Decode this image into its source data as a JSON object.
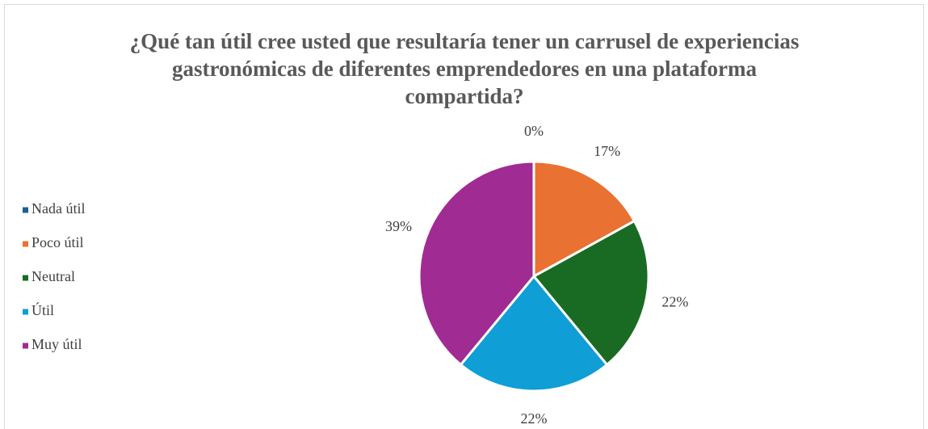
{
  "chart_data": {
    "type": "pie",
    "title": "¿Qué tan útil cree usted que resultaría tener un carrusel de experiencias gastronómicas de diferentes emprendedores en una plataforma compartida?",
    "categories": [
      "Nada útil",
      "Poco útil",
      "Neutral",
      "Útil",
      "Muy útil"
    ],
    "values": [
      0,
      17,
      22,
      22,
      39
    ],
    "value_labels": [
      "0%",
      "17%",
      "22%",
      "22%",
      "39%"
    ],
    "colors": [
      "#1f5f8b",
      "#e97132",
      "#196b24",
      "#0f9ed5",
      "#a02b93"
    ],
    "legend": "left"
  }
}
